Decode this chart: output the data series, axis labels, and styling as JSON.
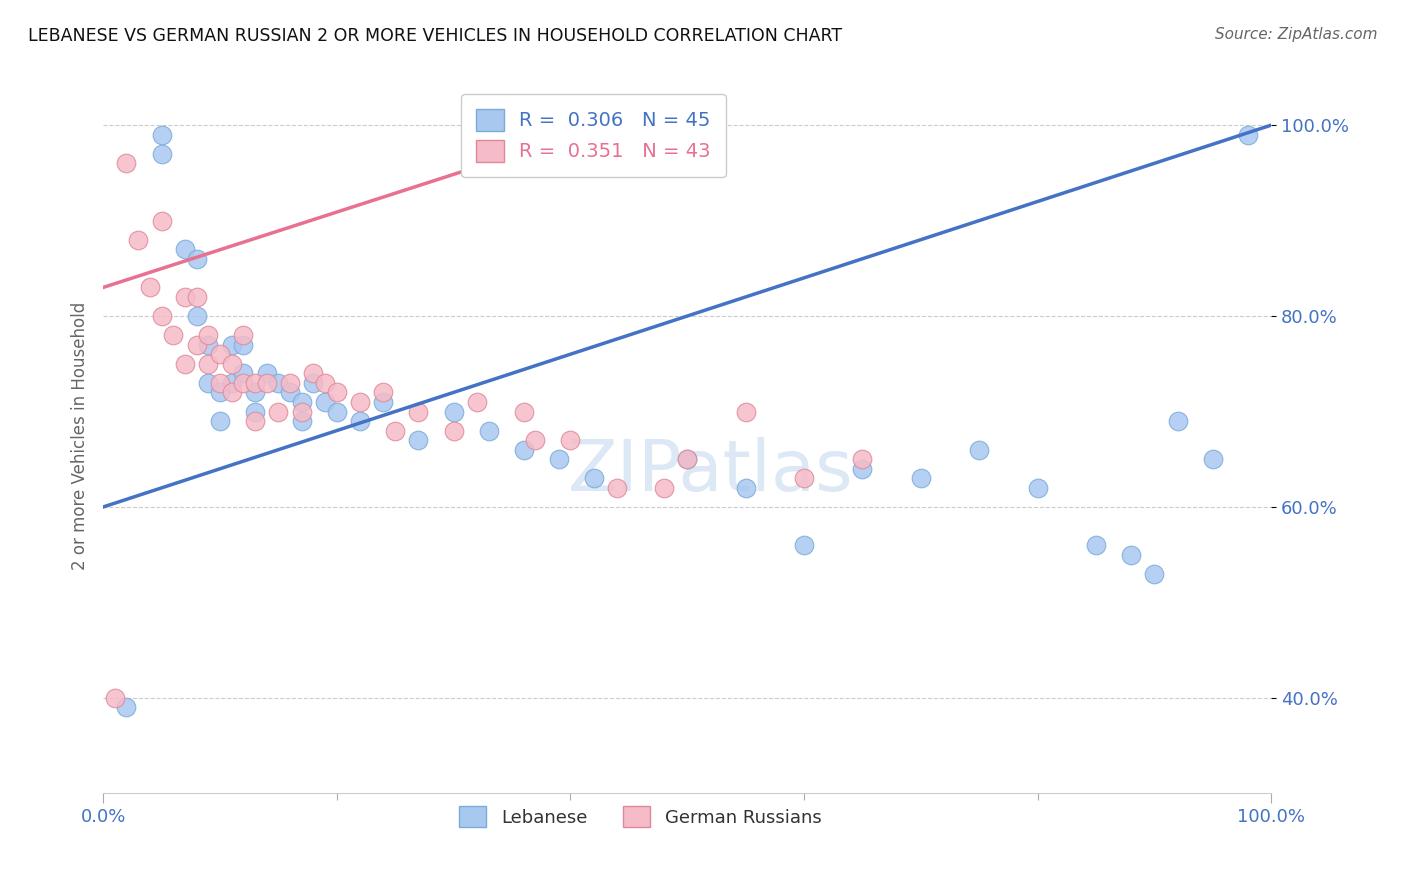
{
  "title": "LEBANESE VS GERMAN RUSSIAN 2 OR MORE VEHICLES IN HOUSEHOLD CORRELATION CHART",
  "source": "Source: ZipAtlas.com",
  "ylabel": "2 or more Vehicles in Household",
  "background_color": "#ffffff",
  "watermark_text": "ZIPatlas",
  "watermark_color": "#dce8f5",
  "lebanese_dot_color": "#a8c8f0",
  "lebanese_dot_edge": "#7aaad8",
  "lebanese_line_color": "#4472C4",
  "german_russian_dot_color": "#f5bbc8",
  "german_russian_dot_edge": "#e08898",
  "german_russian_line_color": "#e87090",
  "R_lebanese": 0.306,
  "N_lebanese": 45,
  "R_german_russian": 0.351,
  "N_german_russian": 43,
  "lebanese_x": [
    0.02,
    0.05,
    0.05,
    0.07,
    0.08,
    0.08,
    0.09,
    0.09,
    0.1,
    0.1,
    0.11,
    0.11,
    0.12,
    0.12,
    0.13,
    0.13,
    0.14,
    0.15,
    0.16,
    0.17,
    0.17,
    0.18,
    0.19,
    0.2,
    0.22,
    0.24,
    0.27,
    0.3,
    0.33,
    0.36,
    0.39,
    0.42,
    0.5,
    0.55,
    0.6,
    0.65,
    0.7,
    0.75,
    0.8,
    0.85,
    0.88,
    0.9,
    0.92,
    0.95,
    0.98
  ],
  "lebanese_y": [
    0.39,
    0.99,
    0.97,
    0.87,
    0.86,
    0.8,
    0.77,
    0.73,
    0.72,
    0.69,
    0.77,
    0.73,
    0.77,
    0.74,
    0.72,
    0.7,
    0.74,
    0.73,
    0.72,
    0.71,
    0.69,
    0.73,
    0.71,
    0.7,
    0.69,
    0.71,
    0.67,
    0.7,
    0.68,
    0.66,
    0.65,
    0.63,
    0.65,
    0.62,
    0.56,
    0.64,
    0.63,
    0.66,
    0.62,
    0.56,
    0.55,
    0.53,
    0.69,
    0.65,
    0.99
  ],
  "german_russian_x": [
    0.01,
    0.02,
    0.03,
    0.04,
    0.05,
    0.05,
    0.06,
    0.07,
    0.07,
    0.08,
    0.08,
    0.09,
    0.09,
    0.1,
    0.1,
    0.11,
    0.11,
    0.12,
    0.12,
    0.13,
    0.13,
    0.14,
    0.15,
    0.16,
    0.17,
    0.18,
    0.19,
    0.2,
    0.22,
    0.24,
    0.25,
    0.27,
    0.3,
    0.32,
    0.36,
    0.37,
    0.4,
    0.44,
    0.48,
    0.5,
    0.55,
    0.6,
    0.65
  ],
  "german_russian_y": [
    0.4,
    0.96,
    0.88,
    0.83,
    0.8,
    0.9,
    0.78,
    0.82,
    0.75,
    0.77,
    0.82,
    0.75,
    0.78,
    0.73,
    0.76,
    0.72,
    0.75,
    0.73,
    0.78,
    0.73,
    0.69,
    0.73,
    0.7,
    0.73,
    0.7,
    0.74,
    0.73,
    0.72,
    0.71,
    0.72,
    0.68,
    0.7,
    0.68,
    0.71,
    0.7,
    0.67,
    0.67,
    0.62,
    0.62,
    0.65,
    0.7,
    0.63,
    0.65
  ],
  "xlim": [
    0.0,
    1.0
  ],
  "ylim": [
    0.3,
    1.05
  ],
  "ytick_positions": [
    0.4,
    0.6,
    0.8,
    1.0
  ],
  "ytick_labels": [
    "40.0%",
    "60.0%",
    "80.0%",
    "100.0%"
  ],
  "xtick_minor": [
    0.2,
    0.4,
    0.6,
    0.8
  ],
  "grid_color": "#cccccc",
  "leb_line_x0": 0.0,
  "leb_line_y0": 0.6,
  "leb_line_x1": 1.0,
  "leb_line_y1": 1.0,
  "ger_line_x0": 0.0,
  "ger_line_y0": 0.83,
  "ger_line_x1": 0.38,
  "ger_line_y1": 0.98
}
